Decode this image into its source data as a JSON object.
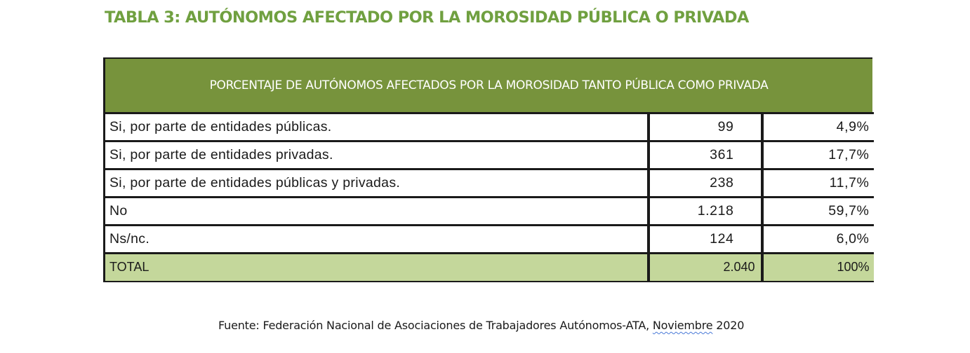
{
  "title": "TABLA 3: AUTÓNOMOS AFECTADO POR LA MOROSIDAD PÚBLICA O PRIVADA",
  "table": {
    "header": "PORCENTAJE DE AUTÓNOMOS AFECTADOS POR LA MOROSIDAD TANTO PÚBLICA COMO PRIVADA",
    "rows": [
      {
        "label": "Si, por parte de entidades públicas.",
        "count": "99",
        "percent": "4,9%"
      },
      {
        "label": "Si, por parte de entidades privadas.",
        "count": "361",
        "percent": "17,7%"
      },
      {
        "label": "Si, por parte de entidades públicas y privadas.",
        "count": "238",
        "percent": "11,7%"
      },
      {
        "label": "No",
        "count": "1.218",
        "percent": "59,7%"
      },
      {
        "label": "Ns/nc.",
        "count": "124",
        "percent": "6,0%"
      }
    ],
    "total": {
      "label": "TOTAL",
      "count": "2.040",
      "percent": "100%"
    }
  },
  "source": {
    "prefix": "Fuente: Federación Nacional de Asociaciones de Trabajadores Autónomos-ATA, ",
    "underlined": "Noviembre",
    "suffix": " 2020"
  },
  "colors": {
    "title_green": "#70a040",
    "header_green": "#77933c",
    "total_row_green": "#c4d79b",
    "spellcheck_underline": "#4a7ad8"
  }
}
